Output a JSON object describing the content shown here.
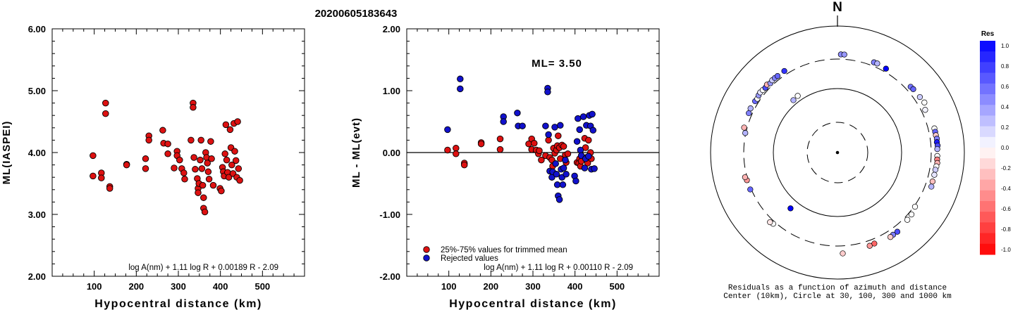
{
  "page": {
    "title": "20200605183643"
  },
  "colors": {
    "red": "#dd1111",
    "blue": "#1111cc",
    "line": "#000000"
  },
  "chart_data": [
    {
      "type": "scatter",
      "ylabel": "ML(IASPEI)",
      "xlabel": "Hypocentral distance (km)",
      "xlim": [
        0,
        600
      ],
      "ylim": [
        2.0,
        6.0
      ],
      "xticks": [
        "100",
        "200",
        "300",
        "400",
        "500"
      ],
      "yticks": [
        "2.00",
        "3.00",
        "4.00",
        "5.00",
        "6.00"
      ],
      "formula": "log A(nm) + 1.11 log R + 0.00189 R - 2.09",
      "series": [
        {
          "color": "red",
          "points": [
            [
              97,
              3.95
            ],
            [
              97,
              3.62
            ],
            [
              117,
              3.67
            ],
            [
              117,
              3.59
            ],
            [
              127,
              4.8
            ],
            [
              127,
              4.63
            ],
            [
              137,
              3.45
            ],
            [
              137,
              3.42
            ],
            [
              177,
              3.81
            ],
            [
              177,
              3.8
            ],
            [
              222,
              3.9
            ],
            [
              222,
              3.74
            ],
            [
              230,
              4.27
            ],
            [
              230,
              4.2
            ],
            [
              263,
              4.36
            ],
            [
              265,
              4.15
            ],
            [
              275,
              4.14
            ],
            [
              275,
              3.98
            ],
            [
              290,
              3.75
            ],
            [
              297,
              4.02
            ],
            [
              297,
              3.95
            ],
            [
              303,
              3.88
            ],
            [
              308,
              3.74
            ],
            [
              313,
              3.67
            ],
            [
              315,
              3.57
            ],
            [
              330,
              4.2
            ],
            [
              335,
              4.8
            ],
            [
              335,
              4.73
            ],
            [
              337,
              3.92
            ],
            [
              340,
              3.73
            ],
            [
              345,
              3.58
            ],
            [
              347,
              3.42
            ],
            [
              347,
              3.35
            ],
            [
              349,
              3.5
            ],
            [
              352,
              3.88
            ],
            [
              354,
              4.2
            ],
            [
              356,
              3.74
            ],
            [
              358,
              3.47
            ],
            [
              360,
              3.27
            ],
            [
              360,
              3.1
            ],
            [
              363,
              3.04
            ],
            [
              365,
              4.0
            ],
            [
              367,
              3.92
            ],
            [
              369,
              3.83
            ],
            [
              371,
              3.69
            ],
            [
              373,
              3.57
            ],
            [
              377,
              4.18
            ],
            [
              379,
              3.9
            ],
            [
              383,
              3.47
            ],
            [
              399,
              3.42
            ],
            [
              402,
              3.38
            ],
            [
              405,
              3.76
            ],
            [
              407,
              3.69
            ],
            [
              409,
              3.62
            ],
            [
              411,
              3.98
            ],
            [
              413,
              4.45
            ],
            [
              415,
              3.88
            ],
            [
              417,
              3.68
            ],
            [
              420,
              3.6
            ],
            [
              423,
              4.37
            ],
            [
              425,
              4.08
            ],
            [
              427,
              3.8
            ],
            [
              430,
              3.66
            ],
            [
              432,
              4.47
            ],
            [
              434,
              4.02
            ],
            [
              437,
              3.87
            ],
            [
              439,
              3.6
            ],
            [
              441,
              4.5
            ],
            [
              443,
              3.74
            ],
            [
              446,
              3.55
            ]
          ]
        }
      ]
    },
    {
      "type": "scatter",
      "ylabel": "ML - ML(evt)",
      "xlabel": "Hypocentral distance (km)",
      "xlim": [
        0,
        600
      ],
      "ylim": [
        -2.0,
        2.0
      ],
      "xticks": [
        "100",
        "200",
        "300",
        "400",
        "500"
      ],
      "yticks": [
        "-2.00",
        "-1.00",
        "0.00",
        "1.00",
        "2.00"
      ],
      "annotation": "ML= 3.50",
      "formula": "log A(nm) + 1.11 log R + 0.00110 R - 2.09",
      "legend": [
        "25%-75% values for trimmed mean",
        "Rejected values"
      ],
      "series": [
        {
          "name": "25%-75% values for trimmed mean",
          "color": "red",
          "points": [
            [
              97,
              0.04
            ],
            [
              117,
              0.07
            ],
            [
              117,
              -0.02
            ],
            [
              137,
              -0.17
            ],
            [
              137,
              -0.2
            ],
            [
              177,
              0.16
            ],
            [
              177,
              0.14
            ],
            [
              222,
              0.22
            ],
            [
              222,
              0.05
            ],
            [
              290,
              0.14
            ],
            [
              297,
              0.22
            ],
            [
              297,
              0.05
            ],
            [
              303,
              0.15
            ],
            [
              308,
              0.04
            ],
            [
              313,
              -0.02
            ],
            [
              315,
              0.03
            ],
            [
              320,
              -0.12
            ],
            [
              330,
              -0.05
            ],
            [
              337,
              0.2
            ],
            [
              340,
              -0.08
            ],
            [
              345,
              -0.12
            ],
            [
              347,
              -0.22
            ],
            [
              349,
              0.07
            ],
            [
              352,
              -0.01
            ],
            [
              356,
              0.04
            ],
            [
              358,
              0.11
            ],
            [
              360,
              0.27
            ],
            [
              363,
              0.08
            ],
            [
              365,
              -0.1
            ],
            [
              369,
              0.12
            ],
            [
              373,
              0.1
            ],
            [
              377,
              -0.04
            ],
            [
              379,
              -0.16
            ],
            [
              383,
              -0.02
            ],
            [
              405,
              -0.16
            ],
            [
              409,
              -0.17
            ],
            [
              411,
              -0.1
            ],
            [
              413,
              -0.22
            ],
            [
              415,
              -0.14
            ],
            [
              423,
              0.23
            ],
            [
              425,
              0.08
            ],
            [
              427,
              -0.08
            ],
            [
              430,
              -0.17
            ],
            [
              432,
              0.2
            ],
            [
              437,
              0.0
            ],
            [
              439,
              -0.1
            ]
          ]
        },
        {
          "name": "Rejected values",
          "color": "blue",
          "points": [
            [
              97,
              0.37
            ],
            [
              127,
              1.19
            ],
            [
              127,
              1.03
            ],
            [
              230,
              0.58
            ],
            [
              230,
              0.5
            ],
            [
              263,
              0.64
            ],
            [
              265,
              0.43
            ],
            [
              275,
              0.43
            ],
            [
              330,
              0.43
            ],
            [
              335,
              1.04
            ],
            [
              335,
              0.98
            ],
            [
              337,
              0.29
            ],
            [
              340,
              -0.3
            ],
            [
              345,
              -0.4
            ],
            [
              347,
              -0.31
            ],
            [
              352,
              0.41
            ],
            [
              354,
              -0.18
            ],
            [
              356,
              -0.35
            ],
            [
              358,
              -0.52
            ],
            [
              360,
              -0.7
            ],
            [
              363,
              -0.76
            ],
            [
              365,
              0.44
            ],
            [
              367,
              -0.27
            ],
            [
              369,
              -0.4
            ],
            [
              371,
              -0.52
            ],
            [
              373,
              -0.25
            ],
            [
              377,
              -0.12
            ],
            [
              379,
              -0.35
            ],
            [
              399,
              -0.38
            ],
            [
              402,
              -0.46
            ],
            [
              405,
              0.18
            ],
            [
              407,
              0.55
            ],
            [
              411,
              0.37
            ],
            [
              413,
              0.04
            ],
            [
              415,
              -0.05
            ],
            [
              420,
              0.58
            ],
            [
              423,
              -0.25
            ],
            [
              425,
              -0.1
            ],
            [
              427,
              0.44
            ],
            [
              432,
              -0.06
            ],
            [
              434,
              0.6
            ],
            [
              437,
              0.43
            ],
            [
              439,
              -0.27
            ],
            [
              441,
              0.62
            ],
            [
              443,
              0.36
            ],
            [
              446,
              -0.26
            ]
          ]
        }
      ]
    },
    {
      "type": "scatter",
      "subtype": "polar",
      "north_label": "N",
      "caption": [
        "Residuals as a function of azimuth and distance",
        "Center (10km), Circle at 30, 100, 300 and 1000 km"
      ],
      "colorbar": {
        "title": "Res",
        "ticks": [
          "1.0",
          "0.8",
          "0.6",
          "0.4",
          "0.2",
          "0.0",
          "-0.2",
          "-0.4",
          "-0.6",
          "-0.8",
          "-1.0"
        ]
      },
      "rings_km": [
        30,
        100,
        300,
        1000
      ],
      "points": [
        {
          "az": 2,
          "dist": 400,
          "res": 0.45
        },
        {
          "az": 4,
          "dist": 400,
          "res": 0.4
        },
        {
          "az": 22,
          "dist": 380,
          "res": 0.5
        },
        {
          "az": 24,
          "dist": 385,
          "res": 0.3
        },
        {
          "az": 30,
          "dist": 370,
          "res": 1.0
        },
        {
          "az": 48,
          "dist": 400,
          "res": 0.55
        },
        {
          "az": 50,
          "dist": 410,
          "res": 0.6
        },
        {
          "az": 56,
          "dist": 420,
          "res": 0.2
        },
        {
          "az": 60,
          "dist": 440,
          "res": 0.0
        },
        {
          "az": 64,
          "dist": 380,
          "res": 0.05
        },
        {
          "az": 76,
          "dist": 430,
          "res": 0.0
        },
        {
          "az": 78,
          "dist": 430,
          "res": 0.6
        },
        {
          "az": 80,
          "dist": 430,
          "res": -0.2
        },
        {
          "az": 82,
          "dist": 440,
          "res": 0.5
        },
        {
          "az": 84,
          "dist": 430,
          "res": 0.9
        },
        {
          "az": 86,
          "dist": 440,
          "res": 0.7
        },
        {
          "az": 88,
          "dist": 430,
          "res": 0.3
        },
        {
          "az": 92,
          "dist": 430,
          "res": 0.0
        },
        {
          "az": 94,
          "dist": 430,
          "res": -0.5
        },
        {
          "az": 96,
          "dist": 440,
          "res": -0.3
        },
        {
          "az": 98,
          "dist": 430,
          "res": 0.0
        },
        {
          "az": 100,
          "dist": 420,
          "res": 0.2
        },
        {
          "az": 103,
          "dist": 420,
          "res": 0.1
        },
        {
          "az": 107,
          "dist": 420,
          "res": -0.25
        },
        {
          "az": 110,
          "dist": 430,
          "res": 0.3
        },
        {
          "az": 125,
          "dist": 320,
          "res": 0.0
        },
        {
          "az": 130,
          "dist": 360,
          "res": 0.0
        },
        {
          "az": 134,
          "dist": 370,
          "res": 0.0
        },
        {
          "az": 143,
          "dist": 420,
          "res": 0.7
        },
        {
          "az": 146,
          "dist": 420,
          "res": 0.5
        },
        {
          "az": 148,
          "dist": 430,
          "res": -0.2
        },
        {
          "az": 158,
          "dist": 400,
          "res": -0.6
        },
        {
          "az": 161,
          "dist": 410,
          "res": -0.4
        },
        {
          "az": 177,
          "dist": 460,
          "res": -0.2
        },
        {
          "az": 220,
          "dist": 160,
          "res": 1.0
        },
        {
          "az": 222,
          "dist": 350,
          "res": 0.0
        },
        {
          "az": 224,
          "dist": 370,
          "res": -0.1
        },
        {
          "az": 247,
          "dist": 320,
          "res": 0.6
        },
        {
          "az": 253,
          "dist": 320,
          "res": -0.4
        },
        {
          "az": 255,
          "dist": 340,
          "res": -0.3
        },
        {
          "az": 282,
          "dist": 310,
          "res": 0.3
        },
        {
          "az": 285,
          "dist": 360,
          "res": -0.3
        },
        {
          "az": 294,
          "dist": 370,
          "res": 0.5
        },
        {
          "az": 297,
          "dist": 380,
          "res": 0.3
        },
        {
          "az": 302,
          "dist": 370,
          "res": 0.6
        },
        {
          "az": 304,
          "dist": 360,
          "res": 0.0
        },
        {
          "az": 306,
          "dist": 380,
          "res": 0.4
        },
        {
          "az": 308,
          "dist": 390,
          "res": 0.1
        },
        {
          "az": 310,
          "dist": 380,
          "res": 0.0
        },
        {
          "az": 312,
          "dist": 370,
          "res": 0.7
        },
        {
          "az": 314,
          "dist": 390,
          "res": -0.3
        },
        {
          "az": 316,
          "dist": 360,
          "res": 0.4
        },
        {
          "az": 318,
          "dist": 380,
          "res": 0.2
        },
        {
          "az": 320,
          "dist": 380,
          "res": 0.5
        },
        {
          "az": 322,
          "dist": 375,
          "res": 0.6
        },
        {
          "az": 327,
          "dist": 380,
          "res": 0.8
        },
        {
          "az": 320,
          "dist": 130,
          "res": 0.3
        },
        {
          "az": 325,
          "dist": 135,
          "res": 0.0
        }
      ]
    }
  ]
}
